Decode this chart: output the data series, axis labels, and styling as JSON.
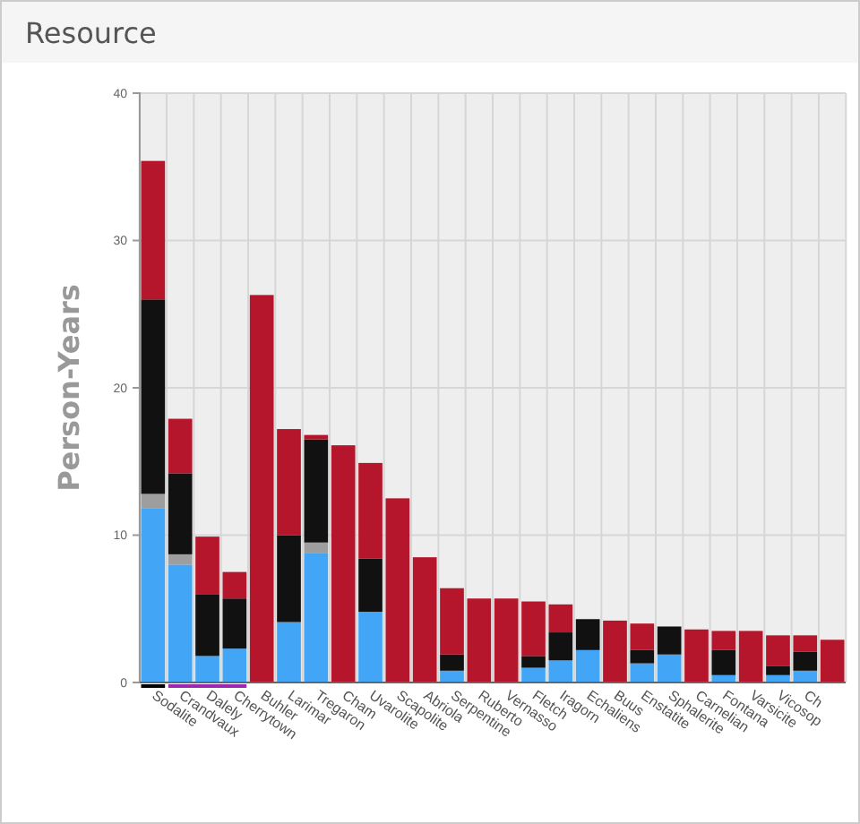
{
  "chart_data": {
    "type": "bar",
    "title": "Resource",
    "ylabel": "Person-Years",
    "categories": [
      "Sodalite",
      "Crandvaux",
      "Dalely",
      "Cherrytown",
      "Buhler",
      "Larimar",
      "Tregaron",
      "Cham",
      "Uvarolite",
      "Scapolite",
      "Abriola",
      "Serpentine",
      "Ruberto",
      "Vernasso",
      "Fletch",
      "Iragorn",
      "Echaliens",
      "Buus",
      "Enstatite",
      "Sphalerite",
      "Carnelian",
      "Fontana",
      "Varsicite",
      "Vicosop",
      "Ch",
      null
    ],
    "stacked": true,
    "series": [
      {
        "color": "#42a5f5",
        "values": [
          11.8,
          8.0,
          1.8,
          2.3,
          0,
          4.1,
          8.8,
          0,
          4.8,
          0,
          0,
          0.8,
          0,
          0,
          1.0,
          1.5,
          2.2,
          0,
          1.3,
          1.9,
          0,
          0.5,
          0,
          0.5,
          0.8,
          0
        ]
      },
      {
        "color": "#9e9e9e",
        "values": [
          1.0,
          0.7,
          0,
          0,
          0,
          0,
          0.7,
          0,
          0,
          0,
          0,
          0,
          0,
          0,
          0,
          0,
          0,
          0,
          0,
          0,
          0,
          0,
          0,
          0,
          0,
          0
        ]
      },
      {
        "color": "#111111",
        "values": [
          13.2,
          5.5,
          4.2,
          3.4,
          0,
          5.9,
          7.0,
          0,
          3.6,
          0,
          0,
          1.1,
          0,
          0,
          0.8,
          1.9,
          2.1,
          0,
          0.9,
          1.9,
          0,
          1.7,
          0,
          0.6,
          1.3,
          0
        ]
      },
      {
        "color": "#b5162b",
        "values": [
          9.4,
          3.7,
          3.9,
          1.8,
          26.3,
          7.2,
          0.3,
          16.1,
          6.5,
          12.5,
          8.5,
          4.5,
          5.7,
          5.7,
          3.7,
          1.9,
          0,
          4.2,
          1.8,
          0,
          3.6,
          1.3,
          3.5,
          2.1,
          1.1,
          2.9
        ]
      }
    ],
    "ylim": [
      0,
      40
    ],
    "yticks": [
      0,
      10,
      20,
      30,
      40
    ],
    "grid": true
  }
}
